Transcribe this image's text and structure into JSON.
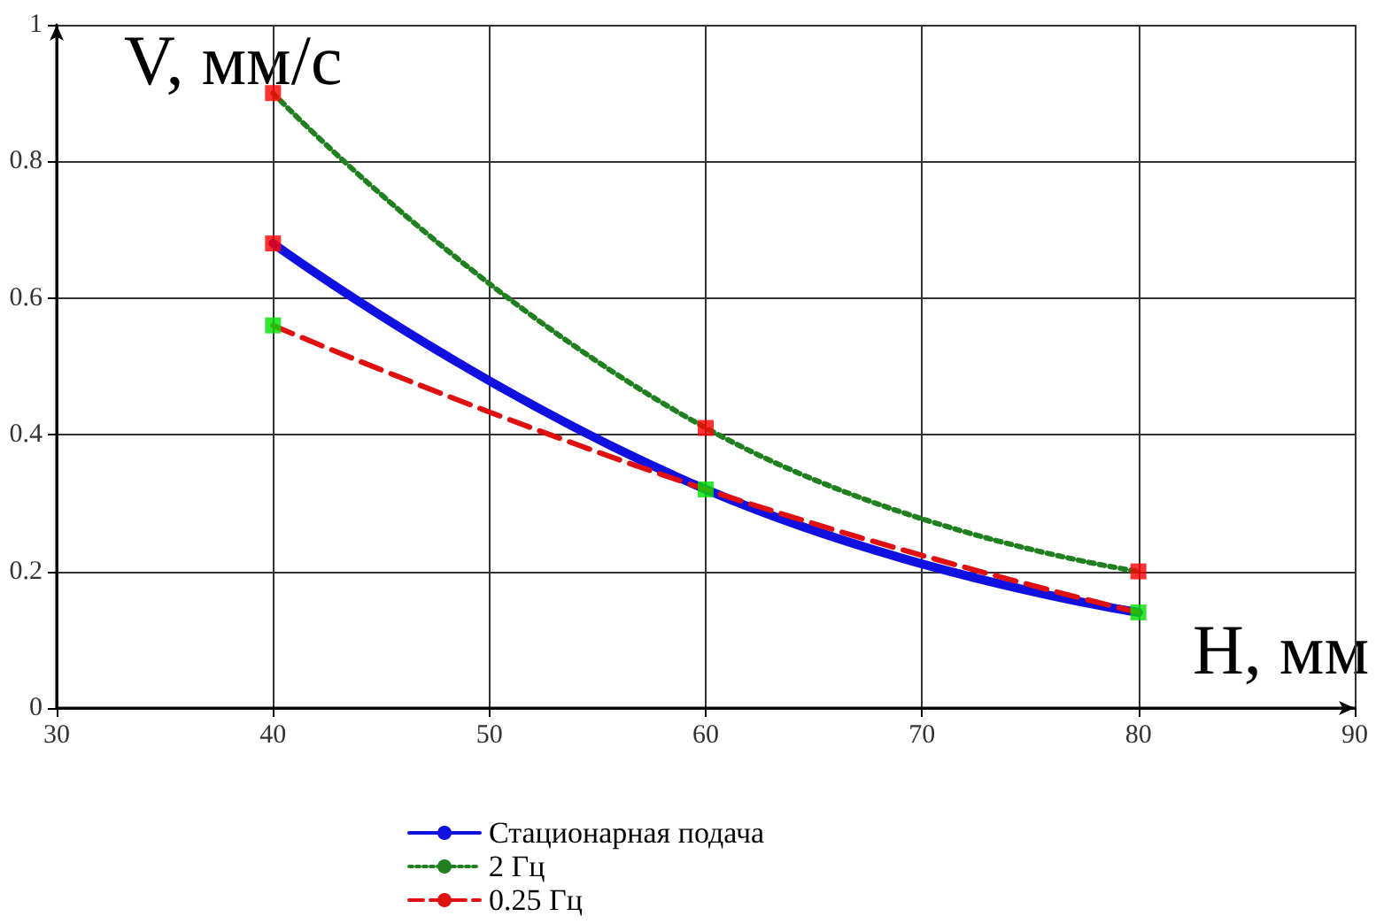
{
  "chart_data": {
    "type": "line",
    "xlabel": "H, мм",
    "ylabel": "V, мм/с",
    "xlim": [
      30,
      90
    ],
    "xticks": [
      30,
      40,
      50,
      60,
      70,
      80,
      90
    ],
    "ylim": [
      0,
      1
    ],
    "yticks": [
      0,
      0.2,
      0.4,
      0.6,
      0.8,
      1
    ],
    "grid": true,
    "legend": "bottom",
    "marker": "none",
    "series": [
      {
        "name": "Стационарная подача",
        "color": "#1010e0",
        "line_style": "solid",
        "x": [
          40,
          60,
          80
        ],
        "values": [
          0.68,
          0.32,
          0.14
        ]
      },
      {
        "name": "2 Гц",
        "color": "#208020",
        "line_style": "dotted",
        "x": [
          40,
          60,
          80
        ],
        "values": [
          0.9,
          0.41,
          0.2
        ]
      },
      {
        "name": "0.25 Гц",
        "color": "#e01010",
        "line_style": "dashed",
        "x": [
          40,
          60,
          80
        ],
        "values": [
          0.56,
          0.32,
          0.14
        ]
      },
      {
        "type": "scatter",
        "marker": "square",
        "color": "#ff0000",
        "x": [
          40,
          40,
          60,
          80
        ],
        "values": [
          0.9,
          0.68,
          0.41,
          0.2
        ]
      },
      {
        "type": "scatter",
        "marker": "square",
        "color": "#00e000",
        "x": [
          40,
          60,
          80
        ],
        "values": [
          0.56,
          0.32,
          0.14
        ]
      }
    ]
  }
}
